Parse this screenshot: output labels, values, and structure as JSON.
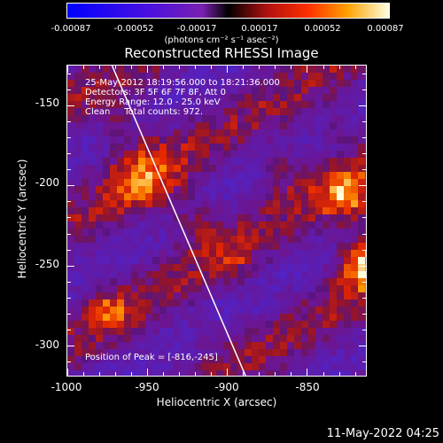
{
  "colorbar": {
    "ticks": [
      "-0.00087",
      "-0.00052",
      "-0.00017",
      "0.00017",
      "0.00052",
      "0.00087"
    ],
    "units": "(photons cm⁻² s⁻¹ asec⁻²)"
  },
  "title": "Reconstructed RHESSI Image",
  "info": {
    "line1": "25-May-2012 18:19:56.000 to 18:21:36.000",
    "line2": "Detectors: 3F 5F 6F 7F 8F, Att 0",
    "line3": "Energy Range: 12.0 - 25.0 keV",
    "line4": "Clean     Total counts: 972.",
    "peak": "Position of Peak = [-816,-245]"
  },
  "axes": {
    "xlabel": "Heliocentric X (arcsec)",
    "ylabel": "Heliocentric Y (arcsec)",
    "xticks": [
      "-1000",
      "-950",
      "-900",
      "-850"
    ],
    "yticks": [
      "-150",
      "-200",
      "-250",
      "-300"
    ]
  },
  "datestamp": "11-May-2022 04:25",
  "chart_data": {
    "type": "heatmap",
    "title": "Reconstructed RHESSI Image",
    "xlabel": "Heliocentric X (arcsec)",
    "ylabel": "Heliocentric Y (arcsec)",
    "xlim": [
      -1000,
      -812
    ],
    "ylim": [
      -320,
      -125
    ],
    "xticks": [
      -1000,
      -950,
      -900,
      -850
    ],
    "yticks": [
      -150,
      -200,
      -250,
      -300
    ],
    "colorbar_range": [
      -0.00087,
      0.00087
    ],
    "peak_position": [
      -816,
      -245
    ],
    "limb_line": [
      [
        -972,
        -125
      ],
      [
        -888,
        -320
      ]
    ]
  }
}
